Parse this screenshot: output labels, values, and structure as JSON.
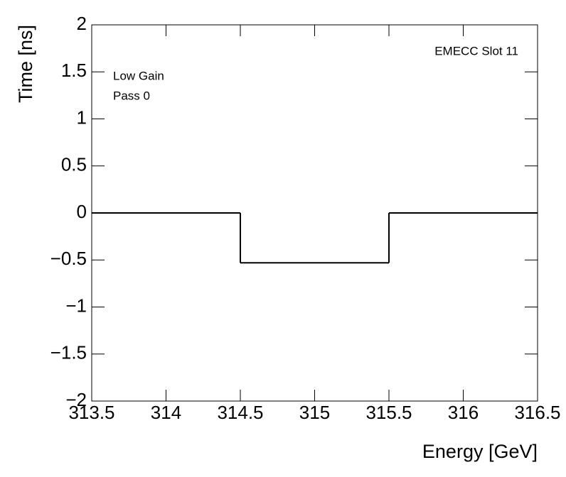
{
  "chart_data": {
    "type": "histogram",
    "x_label": "Energy [GeV]",
    "y_label": "Time [ns]",
    "annotations": [
      "EMECC Slot 11",
      "Low Gain",
      "Pass 0"
    ],
    "bins": [
      313.5,
      314.5,
      315.5,
      316.5
    ],
    "values": [
      0,
      -0.53,
      0
    ],
    "color": "#000000",
    "xlim": [
      313.5,
      316.5
    ],
    "xticks": [
      313.5,
      314,
      314.5,
      315,
      315.5,
      316,
      316.5
    ],
    "ylim": [
      -2,
      2
    ],
    "yticks": [
      {
        "value": -2,
        "label": "−2"
      },
      {
        "value": -1.5,
        "label": "−1.5"
      },
      {
        "value": -1,
        "label": "−1"
      },
      {
        "value": -0.5,
        "label": "−0.5"
      },
      0,
      0.5,
      1,
      1.5,
      2
    ]
  }
}
